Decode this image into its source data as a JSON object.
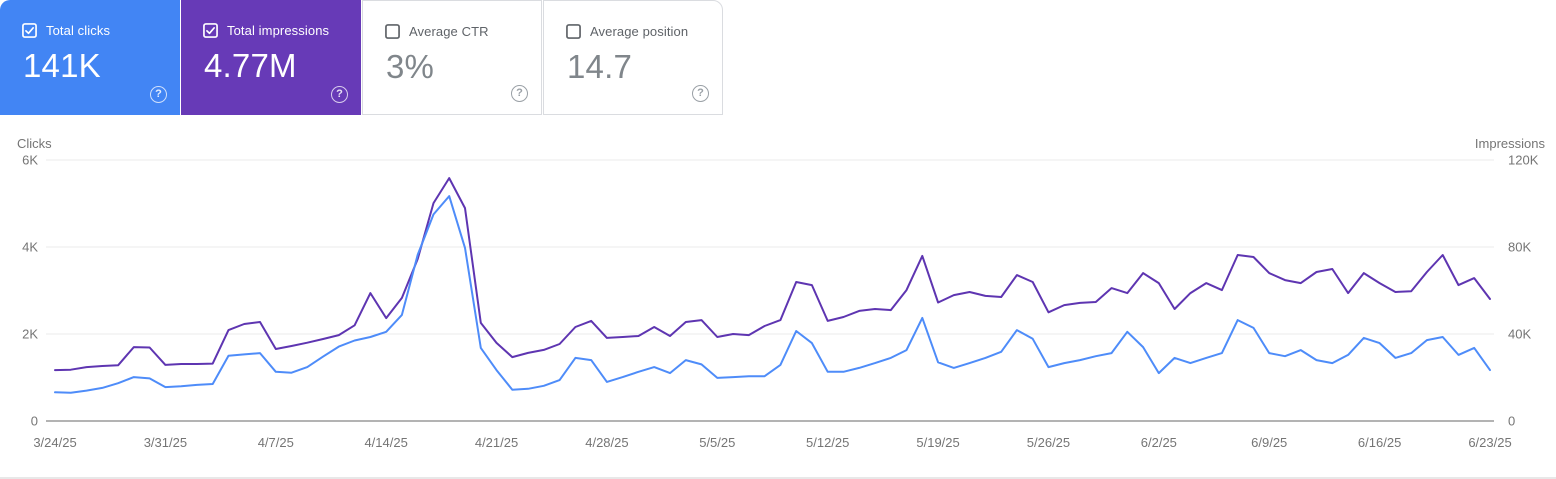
{
  "colors": {
    "clicks_card_bg": "#4285f4",
    "impressions_card_bg": "#673ab7",
    "clicks_line": "#4e8cf9",
    "impressions_line": "#5e35b1",
    "gridline": "#ebebeb",
    "axis_line": "#b3b3b3",
    "tick_text": "#757575"
  },
  "cards": [
    {
      "label": "Total clicks",
      "value": "141K",
      "checked": true,
      "style": "colored",
      "bg": "#4285f4"
    },
    {
      "label": "Total impressions",
      "value": "4.77M",
      "checked": true,
      "style": "colored",
      "bg": "#673ab7"
    },
    {
      "label": "Average CTR",
      "value": "3%",
      "checked": false,
      "style": "white",
      "bg": "#ffffff"
    },
    {
      "label": "Average position",
      "value": "14.7",
      "checked": false,
      "style": "white",
      "bg": "#ffffff"
    }
  ],
  "chart_data": {
    "type": "line",
    "grid": "horizontal",
    "left_axis": {
      "title": "Clicks",
      "ticks": [
        "0",
        "2K",
        "4K",
        "6K"
      ],
      "max": 6000
    },
    "right_axis": {
      "title": "Impressions",
      "ticks": [
        "0",
        "40K",
        "80K",
        "120K"
      ],
      "max": 120000
    },
    "x_tick_labels": [
      "3/24/25",
      "3/31/25",
      "4/7/25",
      "4/14/25",
      "4/21/25",
      "4/28/25",
      "5/5/25",
      "5/12/25",
      "5/19/25",
      "5/26/25",
      "6/2/25",
      "6/9/25",
      "6/16/25",
      "6/23/25"
    ],
    "x_range_note": "daily values from 3/24/25 to 6/23/25",
    "series": [
      {
        "name": "Total clicks",
        "axis": "left",
        "color": "#4e8cf9",
        "values": [
          660,
          650,
          700,
          760,
          870,
          1010,
          980,
          780,
          800,
          830,
          850,
          1500,
          1530,
          1560,
          1130,
          1110,
          1240,
          1480,
          1710,
          1850,
          1930,
          2050,
          2440,
          3820,
          4750,
          5170,
          3980,
          1680,
          1170,
          720,
          740,
          810,
          940,
          1450,
          1400,
          900,
          1010,
          1130,
          1240,
          1100,
          1400,
          1300,
          990,
          1010,
          1030,
          1030,
          1290,
          2070,
          1790,
          1130,
          1130,
          1220,
          1330,
          1450,
          1630,
          2370,
          1350,
          1220,
          1330,
          1450,
          1590,
          2090,
          1890,
          1240,
          1330,
          1400,
          1490,
          1560,
          2050,
          1700,
          1100,
          1450,
          1330,
          1450,
          1560,
          2320,
          2140,
          1560,
          1490,
          1630,
          1400,
          1330,
          1520,
          1910,
          1790,
          1450,
          1560,
          1860,
          1930,
          1520,
          1680,
          1170
        ]
      },
      {
        "name": "Total impressions",
        "axis": "right",
        "color": "#5e35b1",
        "values": [
          23400,
          23600,
          24800,
          25300,
          25600,
          34000,
          33800,
          25800,
          26200,
          26200,
          26400,
          41800,
          44600,
          45500,
          33100,
          34500,
          36000,
          37700,
          39500,
          44000,
          58800,
          47300,
          56600,
          74500,
          100200,
          111700,
          97900,
          45100,
          35900,
          29400,
          31300,
          32700,
          35400,
          43200,
          46000,
          38200,
          38600,
          39100,
          43200,
          39100,
          45500,
          46400,
          38600,
          40000,
          39500,
          43700,
          46400,
          63900,
          62500,
          46000,
          47800,
          50600,
          51500,
          51000,
          60200,
          75900,
          54500,
          57900,
          59300,
          57500,
          57000,
          67100,
          63900,
          50000,
          53300,
          54300,
          54700,
          61100,
          58800,
          68000,
          63400,
          51500,
          58800,
          63400,
          60200,
          76300,
          75400,
          68000,
          64800,
          63400,
          68500,
          69900,
          58800,
          68000,
          63400,
          59300,
          59700,
          68500,
          76300,
          62500,
          65700,
          56100
        ]
      }
    ]
  }
}
